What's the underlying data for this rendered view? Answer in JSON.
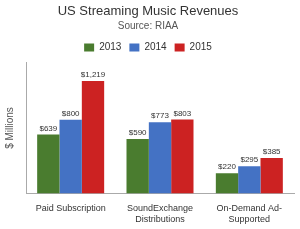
{
  "chart_data": {
    "type": "bar",
    "title": "US Streaming Music Revenues",
    "subtitle": "Source: RIAA",
    "categories": [
      "Paid Subscription",
      "SoundExchange\nDistributions",
      "On-Demand Ad-\nSupported"
    ],
    "series": [
      {
        "name": "2013",
        "color": "#4a7c2f",
        "values": [
          639,
          590,
          220
        ],
        "value_labels": [
          "$639",
          "$590",
          "$220"
        ]
      },
      {
        "name": "2014",
        "color": "#4472c4",
        "values": [
          800,
          773,
          295
        ],
        "value_labels": [
          "$800",
          "$773",
          "$295"
        ]
      },
      {
        "name": "2015",
        "color": "#cc2222",
        "values": [
          1219,
          803,
          385
        ],
        "value_labels": [
          "$1,219",
          "$803",
          "$385"
        ]
      }
    ],
    "ylabel": "$ Millions",
    "ylim": [
      0,
      1420
    ],
    "grid": false,
    "legend": "top",
    "data_labels": true,
    "tick_labels": "x"
  }
}
